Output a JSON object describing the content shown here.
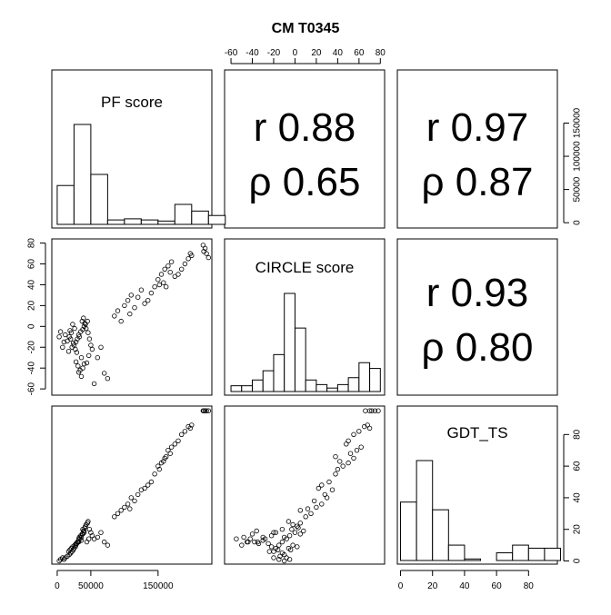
{
  "title": "CM T0345",
  "chart_data": {
    "type": "scatter",
    "subtype": "pairs-matrix",
    "variables": [
      "PF score",
      "CIRCLE score",
      "GDT_TS"
    ],
    "ticks": {
      "pf_bottom": {
        "values": [
          0,
          50000,
          150000
        ],
        "labels": [
          "0",
          "50000",
          "150000"
        ]
      },
      "pf_right": {
        "values": [
          0,
          50000,
          100000,
          150000
        ],
        "labels": [
          "0",
          "50000",
          "100000",
          "150000"
        ]
      },
      "circle_top": {
        "values": [
          -60,
          -40,
          -20,
          0,
          20,
          40,
          60,
          80
        ],
        "labels": [
          "-60",
          "-40",
          "-20",
          "0",
          "20",
          "40",
          "60",
          "80"
        ]
      },
      "circle_left": {
        "values": [
          -60,
          -40,
          -20,
          0,
          20,
          40,
          60,
          80
        ],
        "labels": [
          "-60",
          "-40",
          "-20",
          "0",
          "20",
          "40",
          "60",
          "80"
        ]
      },
      "gdt_bottom": {
        "values": [
          0,
          20,
          40,
          60,
          80
        ],
        "labels": [
          "0",
          "20",
          "40",
          "60",
          "80"
        ]
      },
      "gdt_right": {
        "values": [
          0,
          20,
          40,
          60,
          80
        ],
        "labels": [
          "0",
          "20",
          "40",
          "60",
          "80"
        ]
      }
    },
    "ranges": {
      "pf": [
        -8000,
        230000
      ],
      "circle": [
        -66,
        84
      ],
      "gdt": [
        -2,
        98
      ]
    },
    "histograms": [
      {
        "variable": "PF score",
        "bin_edges": [
          0,
          25000,
          50000,
          75000,
          100000,
          125000,
          150000,
          175000,
          200000,
          225000
        ],
        "counts": [
          35,
          90,
          45,
          4,
          5,
          4,
          3,
          18,
          12,
          8
        ]
      },
      {
        "variable": "CIRCLE score",
        "bin_edges": [
          -60,
          -50,
          -40,
          -30,
          -20,
          -10,
          0,
          10,
          20,
          30,
          40,
          50,
          60,
          70,
          80
        ],
        "counts": [
          5,
          5,
          10,
          18,
          32,
          85,
          55,
          10,
          6,
          3,
          6,
          12,
          25,
          20
        ]
      },
      {
        "variable": "GDT_TS",
        "bin_edges": [
          0,
          10,
          20,
          30,
          40,
          50,
          60,
          70,
          80,
          90,
          100
        ],
        "counts": [
          38,
          65,
          33,
          10,
          1,
          0,
          5,
          10,
          8,
          8
        ]
      }
    ],
    "correlations": [
      {
        "pair": [
          "PF score",
          "CIRCLE score"
        ],
        "r": "r 0.88",
        "rho": "ρ 0.65"
      },
      {
        "pair": [
          "PF score",
          "GDT_TS"
        ],
        "r": "r 0.97",
        "rho": "ρ 0.87"
      },
      {
        "pair": [
          "CIRCLE score",
          "GDT_TS"
        ],
        "r": "r 0.93",
        "rho": "ρ 0.80"
      }
    ],
    "points": [
      [
        30000,
        -12,
        12
      ],
      [
        32000,
        -8,
        14
      ],
      [
        28000,
        -15,
        10
      ],
      [
        35000,
        -5,
        16
      ],
      [
        40000,
        0,
        18
      ],
      [
        25000,
        -18,
        8
      ],
      [
        22000,
        -20,
        6
      ],
      [
        38000,
        -3,
        20
      ],
      [
        42000,
        2,
        22
      ],
      [
        45000,
        5,
        24
      ],
      [
        33000,
        -10,
        15
      ],
      [
        29000,
        -25,
        11
      ],
      [
        36000,
        -30,
        13
      ],
      [
        31000,
        -38,
        12
      ],
      [
        34000,
        -42,
        14
      ],
      [
        27000,
        -22,
        9
      ],
      [
        24000,
        -16,
        7
      ],
      [
        20000,
        -12,
        5
      ],
      [
        18000,
        -10,
        4
      ],
      [
        15000,
        -14,
        3
      ],
      [
        12000,
        -8,
        2
      ],
      [
        10000,
        -15,
        1
      ],
      [
        8000,
        -20,
        2
      ],
      [
        5000,
        -5,
        1
      ],
      [
        3000,
        -10,
        0
      ],
      [
        37000,
        5,
        17
      ],
      [
        39000,
        8,
        19
      ],
      [
        41000,
        3,
        21
      ],
      [
        43000,
        -2,
        23
      ],
      [
        46000,
        -6,
        25
      ],
      [
        48000,
        -12,
        20
      ],
      [
        50000,
        -18,
        18
      ],
      [
        52000,
        -22,
        16
      ],
      [
        47000,
        -28,
        14
      ],
      [
        44000,
        -35,
        12
      ],
      [
        26000,
        -2,
        10
      ],
      [
        23000,
        2,
        9
      ],
      [
        21000,
        -6,
        8
      ],
      [
        19000,
        -4,
        7
      ],
      [
        17000,
        -24,
        6
      ],
      [
        60000,
        -30,
        15
      ],
      [
        65000,
        -20,
        18
      ],
      [
        70000,
        -45,
        12
      ],
      [
        75000,
        -50,
        10
      ],
      [
        55000,
        -55,
        14
      ],
      [
        32000,
        -44,
        12
      ],
      [
        36000,
        -48,
        15
      ],
      [
        38000,
        -40,
        17
      ],
      [
        40000,
        -36,
        19
      ],
      [
        28000,
        -34,
        11
      ],
      [
        85000,
        10,
        28
      ],
      [
        90000,
        15,
        30
      ],
      [
        95000,
        5,
        32
      ],
      [
        100000,
        20,
        34
      ],
      [
        105000,
        25,
        36
      ],
      [
        110000,
        30,
        40
      ],
      [
        115000,
        18,
        38
      ],
      [
        120000,
        28,
        42
      ],
      [
        125000,
        35,
        45
      ],
      [
        108000,
        12,
        33
      ],
      [
        150000,
        45,
        60
      ],
      [
        155000,
        50,
        62
      ],
      [
        160000,
        55,
        65
      ],
      [
        165000,
        58,
        70
      ],
      [
        170000,
        62,
        72
      ],
      [
        175000,
        48,
        74
      ],
      [
        152000,
        40,
        58
      ],
      [
        158000,
        42,
        63
      ],
      [
        162000,
        38,
        66
      ],
      [
        168000,
        52,
        68
      ],
      [
        190000,
        60,
        82
      ],
      [
        195000,
        65,
        85
      ],
      [
        198000,
        70,
        84
      ],
      [
        200000,
        68,
        86
      ],
      [
        185000,
        55,
        80
      ],
      [
        218000,
        72,
        95
      ],
      [
        220000,
        75,
        95
      ],
      [
        222000,
        70,
        95
      ],
      [
        225000,
        66,
        95
      ],
      [
        217000,
        78,
        95
      ],
      [
        140000,
        32,
        50
      ],
      [
        135000,
        25,
        48
      ],
      [
        130000,
        22,
        46
      ],
      [
        145000,
        38,
        55
      ],
      [
        180000,
        50,
        76
      ]
    ]
  }
}
